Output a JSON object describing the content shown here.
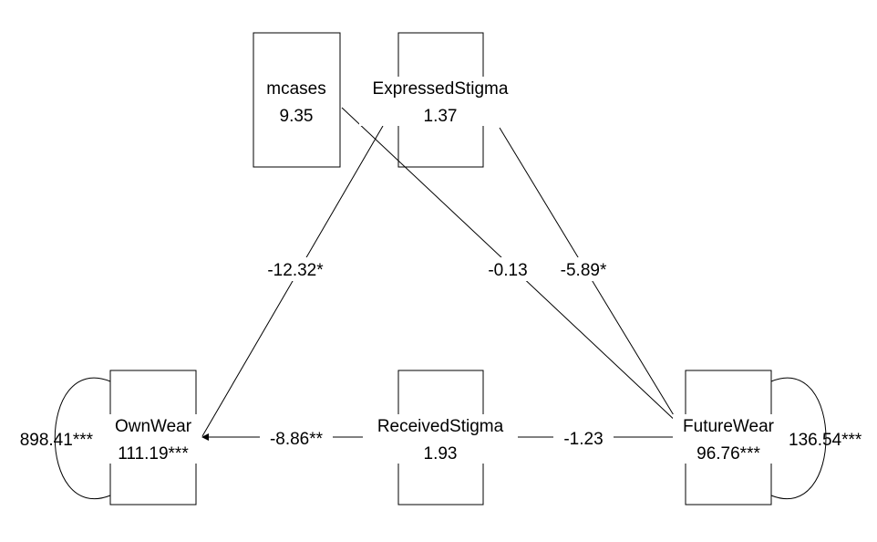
{
  "nodes": {
    "mcases": {
      "name": "mcases",
      "value": "9.35"
    },
    "expressed": {
      "name": "ExpressedStigma",
      "value": "1.37"
    },
    "received": {
      "name": "ReceivedStigma",
      "value": "1.93"
    },
    "ownwear": {
      "name": "OwnWear",
      "value": "111.19***",
      "variance": "898.41***"
    },
    "futurewear": {
      "name": "FutureWear",
      "value": "96.76***",
      "variance": "136.54***"
    }
  },
  "edges": {
    "expressed_ownwear": {
      "from": "ExpressedStigma",
      "to": "OwnWear",
      "label": "-12.32*"
    },
    "mcases_futurewear": {
      "from": "mcases",
      "to": "FutureWear",
      "label": "-0.13"
    },
    "expressed_futurewear": {
      "from": "ExpressedStigma",
      "to": "FutureWear",
      "label": "-5.89*"
    },
    "received_ownwear": {
      "from": "ReceivedStigma",
      "to": "OwnWear",
      "label": "-8.86**"
    },
    "received_futurewear": {
      "from": "ReceivedStigma",
      "to": "FutureWear",
      "label": "-1.23"
    }
  },
  "colors": {
    "stroke": "#000000",
    "background": "#ffffff"
  }
}
